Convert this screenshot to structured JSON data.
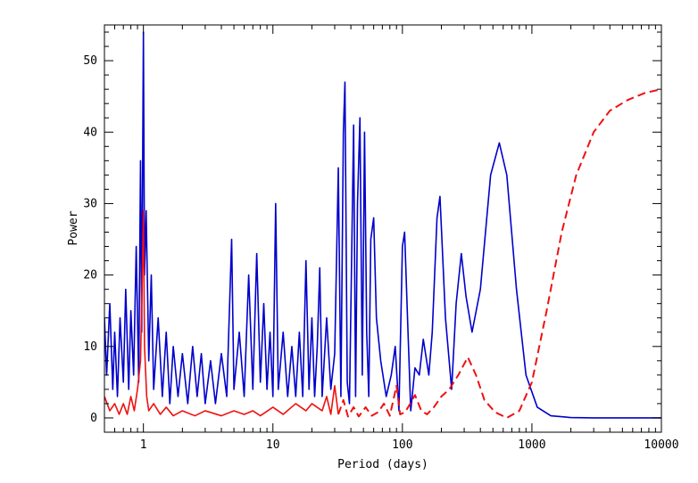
{
  "chart_data": {
    "type": "line",
    "title": "",
    "xlabel": "Period (days)",
    "ylabel": "Power",
    "xscale": "log",
    "xlim": [
      0.5,
      10000
    ],
    "ylim": [
      -2,
      55
    ],
    "xticks": [
      {
        "value": 1,
        "label": "1"
      },
      {
        "value": 10,
        "label": "10"
      },
      {
        "value": 100,
        "label": "100"
      },
      {
        "value": 1000,
        "label": "1000"
      },
      {
        "value": 10000,
        "label": "10000"
      }
    ],
    "yticks": [
      {
        "value": 0,
        "label": "0"
      },
      {
        "value": 10,
        "label": "10"
      },
      {
        "value": 20,
        "label": "20"
      },
      {
        "value": 30,
        "label": "30"
      },
      {
        "value": 40,
        "label": "40"
      },
      {
        "value": 50,
        "label": "50"
      }
    ],
    "grid": false,
    "legend": "none",
    "colors": {
      "series1": "#0000cc",
      "series2": "#ee1111",
      "axes": "#000000"
    },
    "series": [
      {
        "style": "solid",
        "color": "#0000cc",
        "points": [
          [
            0.5,
            14
          ],
          [
            0.52,
            6
          ],
          [
            0.55,
            16
          ],
          [
            0.58,
            4
          ],
          [
            0.6,
            12
          ],
          [
            0.63,
            3
          ],
          [
            0.66,
            14
          ],
          [
            0.7,
            5
          ],
          [
            0.73,
            18
          ],
          [
            0.77,
            4
          ],
          [
            0.8,
            15
          ],
          [
            0.84,
            6
          ],
          [
            0.88,
            24
          ],
          [
            0.92,
            5
          ],
          [
            0.95,
            36
          ],
          [
            0.97,
            12
          ],
          [
            1.0,
            54
          ],
          [
            1.02,
            20
          ],
          [
            1.05,
            29
          ],
          [
            1.1,
            8
          ],
          [
            1.15,
            20
          ],
          [
            1.2,
            4
          ],
          [
            1.3,
            14
          ],
          [
            1.4,
            3
          ],
          [
            1.5,
            12
          ],
          [
            1.6,
            2
          ],
          [
            1.7,
            10
          ],
          [
            1.85,
            3
          ],
          [
            2.0,
            9
          ],
          [
            2.2,
            2
          ],
          [
            2.4,
            10
          ],
          [
            2.6,
            3
          ],
          [
            2.8,
            9
          ],
          [
            3.0,
            2
          ],
          [
            3.3,
            8
          ],
          [
            3.6,
            2
          ],
          [
            4.0,
            9
          ],
          [
            4.4,
            3
          ],
          [
            4.8,
            25
          ],
          [
            5.0,
            4
          ],
          [
            5.5,
            12
          ],
          [
            6.0,
            3
          ],
          [
            6.5,
            20
          ],
          [
            7.0,
            4
          ],
          [
            7.5,
            23
          ],
          [
            8.0,
            5
          ],
          [
            8.5,
            16
          ],
          [
            9.0,
            4
          ],
          [
            9.5,
            12
          ],
          [
            10.0,
            3
          ],
          [
            10.5,
            30
          ],
          [
            11.0,
            4
          ],
          [
            12.0,
            12
          ],
          [
            13.0,
            3
          ],
          [
            14.0,
            10
          ],
          [
            15.0,
            3
          ],
          [
            16.0,
            12
          ],
          [
            17.0,
            3
          ],
          [
            18.0,
            22
          ],
          [
            19.0,
            4
          ],
          [
            20.0,
            14
          ],
          [
            21.0,
            3
          ],
          [
            22.0,
            10
          ],
          [
            23.0,
            21
          ],
          [
            24.0,
            3
          ],
          [
            26.0,
            14
          ],
          [
            28.0,
            4
          ],
          [
            30.0,
            9
          ],
          [
            32.0,
            35
          ],
          [
            33.5,
            3
          ],
          [
            35.0,
            40
          ],
          [
            36.0,
            47
          ],
          [
            37.5,
            5
          ],
          [
            39.0,
            2
          ],
          [
            42.0,
            41
          ],
          [
            43.5,
            3
          ],
          [
            45.0,
            30
          ],
          [
            47.0,
            42
          ],
          [
            49.0,
            6
          ],
          [
            51.0,
            40
          ],
          [
            53.0,
            12
          ],
          [
            55.0,
            3
          ],
          [
            57.0,
            25
          ],
          [
            60.0,
            28
          ],
          [
            63.0,
            14
          ],
          [
            68.0,
            8
          ],
          [
            75.0,
            3
          ],
          [
            82.0,
            6
          ],
          [
            88.0,
            10
          ],
          [
            94.0,
            1
          ],
          [
            100.0,
            24
          ],
          [
            104.0,
            26
          ],
          [
            110.0,
            13
          ],
          [
            116.0,
            1
          ],
          [
            125.0,
            7
          ],
          [
            135.0,
            6
          ],
          [
            145.0,
            11
          ],
          [
            160.0,
            6
          ],
          [
            170.0,
            12
          ],
          [
            185.0,
            28
          ],
          [
            195.0,
            31
          ],
          [
            215.0,
            14
          ],
          [
            240.0,
            4
          ],
          [
            260.0,
            16
          ],
          [
            285.0,
            23
          ],
          [
            310.0,
            17
          ],
          [
            345.0,
            12
          ],
          [
            400.0,
            18
          ],
          [
            480.0,
            34
          ],
          [
            560.0,
            38.5
          ],
          [
            640.0,
            34
          ],
          [
            760.0,
            18
          ],
          [
            900.0,
            6
          ],
          [
            1100.0,
            1.5
          ],
          [
            1400.0,
            0.3
          ],
          [
            2000.0,
            0.05
          ],
          [
            3000.0,
            0
          ],
          [
            10000.0,
            0
          ]
        ]
      },
      {
        "style": "solid",
        "color": "#ee1111",
        "points": [
          [
            0.5,
            3
          ],
          [
            0.55,
            1
          ],
          [
            0.6,
            2
          ],
          [
            0.65,
            0.5
          ],
          [
            0.7,
            2
          ],
          [
            0.75,
            0.5
          ],
          [
            0.8,
            3
          ],
          [
            0.85,
            1
          ],
          [
            0.9,
            4
          ],
          [
            0.95,
            8
          ],
          [
            0.98,
            20
          ],
          [
            1.0,
            29
          ],
          [
            1.02,
            10
          ],
          [
            1.06,
            3
          ],
          [
            1.1,
            1
          ],
          [
            1.2,
            2
          ],
          [
            1.35,
            0.5
          ],
          [
            1.5,
            1.5
          ],
          [
            1.7,
            0.3
          ],
          [
            2.0,
            1
          ],
          [
            2.5,
            0.3
          ],
          [
            3.0,
            1
          ],
          [
            4.0,
            0.3
          ],
          [
            5.0,
            1
          ],
          [
            6.0,
            0.5
          ],
          [
            7.0,
            1
          ],
          [
            8.0,
            0.3
          ],
          [
            10.0,
            1.5
          ],
          [
            12.0,
            0.5
          ],
          [
            15.0,
            2
          ],
          [
            18.0,
            1
          ],
          [
            20.0,
            2
          ],
          [
            24.0,
            1
          ],
          [
            26.0,
            3
          ],
          [
            28.0,
            0.5
          ],
          [
            30.0,
            4.5
          ],
          [
            32.0,
            0.5
          ]
        ]
      },
      {
        "style": "dashed",
        "color": "#ee1111",
        "points": [
          [
            32.0,
            0.5
          ],
          [
            35.0,
            2.5
          ],
          [
            38.0,
            0.2
          ],
          [
            42.0,
            1.5
          ],
          [
            46.0,
            0.2
          ],
          [
            52.0,
            1.5
          ],
          [
            58.0,
            0.3
          ],
          [
            65.0,
            0.8
          ],
          [
            72.0,
            2
          ],
          [
            80.0,
            0.3
          ],
          [
            90.0,
            4.5
          ],
          [
            96.0,
            0.5
          ],
          [
            105.0,
            0.8
          ],
          [
            115.0,
            2
          ],
          [
            125.0,
            3.2
          ],
          [
            140.0,
            1
          ],
          [
            155.0,
            0.5
          ],
          [
            175.0,
            1.5
          ],
          [
            200.0,
            3
          ],
          [
            230.0,
            4
          ],
          [
            270.0,
            6
          ],
          [
            320.0,
            8.5
          ],
          [
            370.0,
            6
          ],
          [
            430.0,
            2.5
          ],
          [
            520.0,
            0.8
          ],
          [
            640.0,
            0
          ],
          [
            800.0,
            1
          ],
          [
            1000.0,
            5
          ],
          [
            1300.0,
            15
          ],
          [
            1700.0,
            26
          ],
          [
            2200.0,
            34
          ],
          [
            3000.0,
            40
          ],
          [
            4000.0,
            43
          ],
          [
            5500.0,
            44.5
          ],
          [
            7500.0,
            45.5
          ],
          [
            10000.0,
            46
          ]
        ]
      }
    ]
  }
}
